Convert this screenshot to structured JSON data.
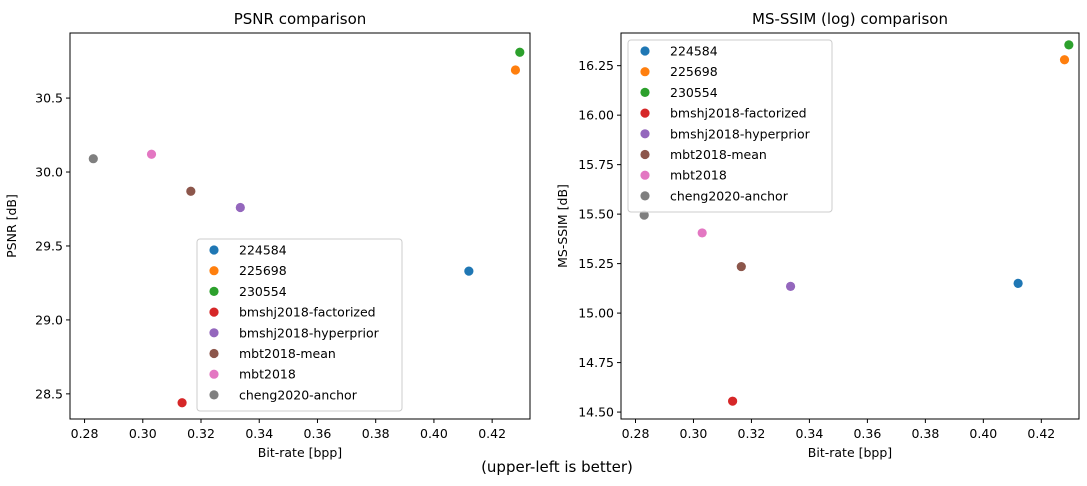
{
  "figure": {
    "caption": "(upper-left is better)"
  },
  "chart_data": [
    {
      "type": "scatter",
      "title": "PSNR comparison",
      "xlabel": "Bit-rate [bpp]",
      "ylabel": "PSNR [dB]",
      "xlim": [
        0.275,
        0.433
      ],
      "ylim": [
        28.33,
        30.94
      ],
      "xticks": [
        "0.28",
        "0.30",
        "0.32",
        "0.34",
        "0.36",
        "0.38",
        "0.40",
        "0.42"
      ],
      "yticks": [
        "28.5",
        "29.0",
        "29.5",
        "30.0",
        "30.5"
      ],
      "grid": false,
      "legend_position": "lower-center",
      "series": [
        {
          "name": "224584",
          "color": "#1f77b4",
          "x": [
            0.412
          ],
          "y": [
            29.33
          ]
        },
        {
          "name": "225698",
          "color": "#ff7f0e",
          "x": [
            0.428
          ],
          "y": [
            30.69
          ]
        },
        {
          "name": "230554",
          "color": "#2ca02c",
          "x": [
            0.4295
          ],
          "y": [
            30.81
          ]
        },
        {
          "name": "bmshj2018-factorized",
          "color": "#d62728",
          "x": [
            0.3135
          ],
          "y": [
            28.44
          ]
        },
        {
          "name": "bmshj2018-hyperprior",
          "color": "#9467bd",
          "x": [
            0.3335
          ],
          "y": [
            29.76
          ]
        },
        {
          "name": "mbt2018-mean",
          "color": "#8c564b",
          "x": [
            0.3165
          ],
          "y": [
            29.87
          ]
        },
        {
          "name": "mbt2018",
          "color": "#e377c2",
          "x": [
            0.303
          ],
          "y": [
            30.12
          ]
        },
        {
          "name": "cheng2020-anchor",
          "color": "#7f7f7f",
          "x": [
            0.283
          ],
          "y": [
            30.09
          ]
        }
      ]
    },
    {
      "type": "scatter",
      "title": "MS-SSIM (log) comparison",
      "xlabel": "Bit-rate [bpp]",
      "ylabel": "MS-SSIM [dB]",
      "xlim": [
        0.275,
        0.433
      ],
      "ylim": [
        14.465,
        16.415
      ],
      "xticks": [
        "0.28",
        "0.30",
        "0.32",
        "0.34",
        "0.36",
        "0.38",
        "0.40",
        "0.42"
      ],
      "yticks": [
        "14.50",
        "14.75",
        "15.00",
        "15.25",
        "15.50",
        "15.75",
        "16.00",
        "16.25"
      ],
      "grid": false,
      "legend_position": "upper-left",
      "series": [
        {
          "name": "224584",
          "color": "#1f77b4",
          "x": [
            0.412
          ],
          "y": [
            15.15
          ]
        },
        {
          "name": "225698",
          "color": "#ff7f0e",
          "x": [
            0.428
          ],
          "y": [
            16.28
          ]
        },
        {
          "name": "230554",
          "color": "#2ca02c",
          "x": [
            0.4295
          ],
          "y": [
            16.355
          ]
        },
        {
          "name": "bmshj2018-factorized",
          "color": "#d62728",
          "x": [
            0.3135
          ],
          "y": [
            14.555
          ]
        },
        {
          "name": "bmshj2018-hyperprior",
          "color": "#9467bd",
          "x": [
            0.3335
          ],
          "y": [
            15.135
          ]
        },
        {
          "name": "mbt2018-mean",
          "color": "#8c564b",
          "x": [
            0.3165
          ],
          "y": [
            15.235
          ]
        },
        {
          "name": "mbt2018",
          "color": "#e377c2",
          "x": [
            0.303
          ],
          "y": [
            15.405
          ]
        },
        {
          "name": "cheng2020-anchor",
          "color": "#7f7f7f",
          "x": [
            0.283
          ],
          "y": [
            15.495
          ]
        }
      ]
    }
  ]
}
